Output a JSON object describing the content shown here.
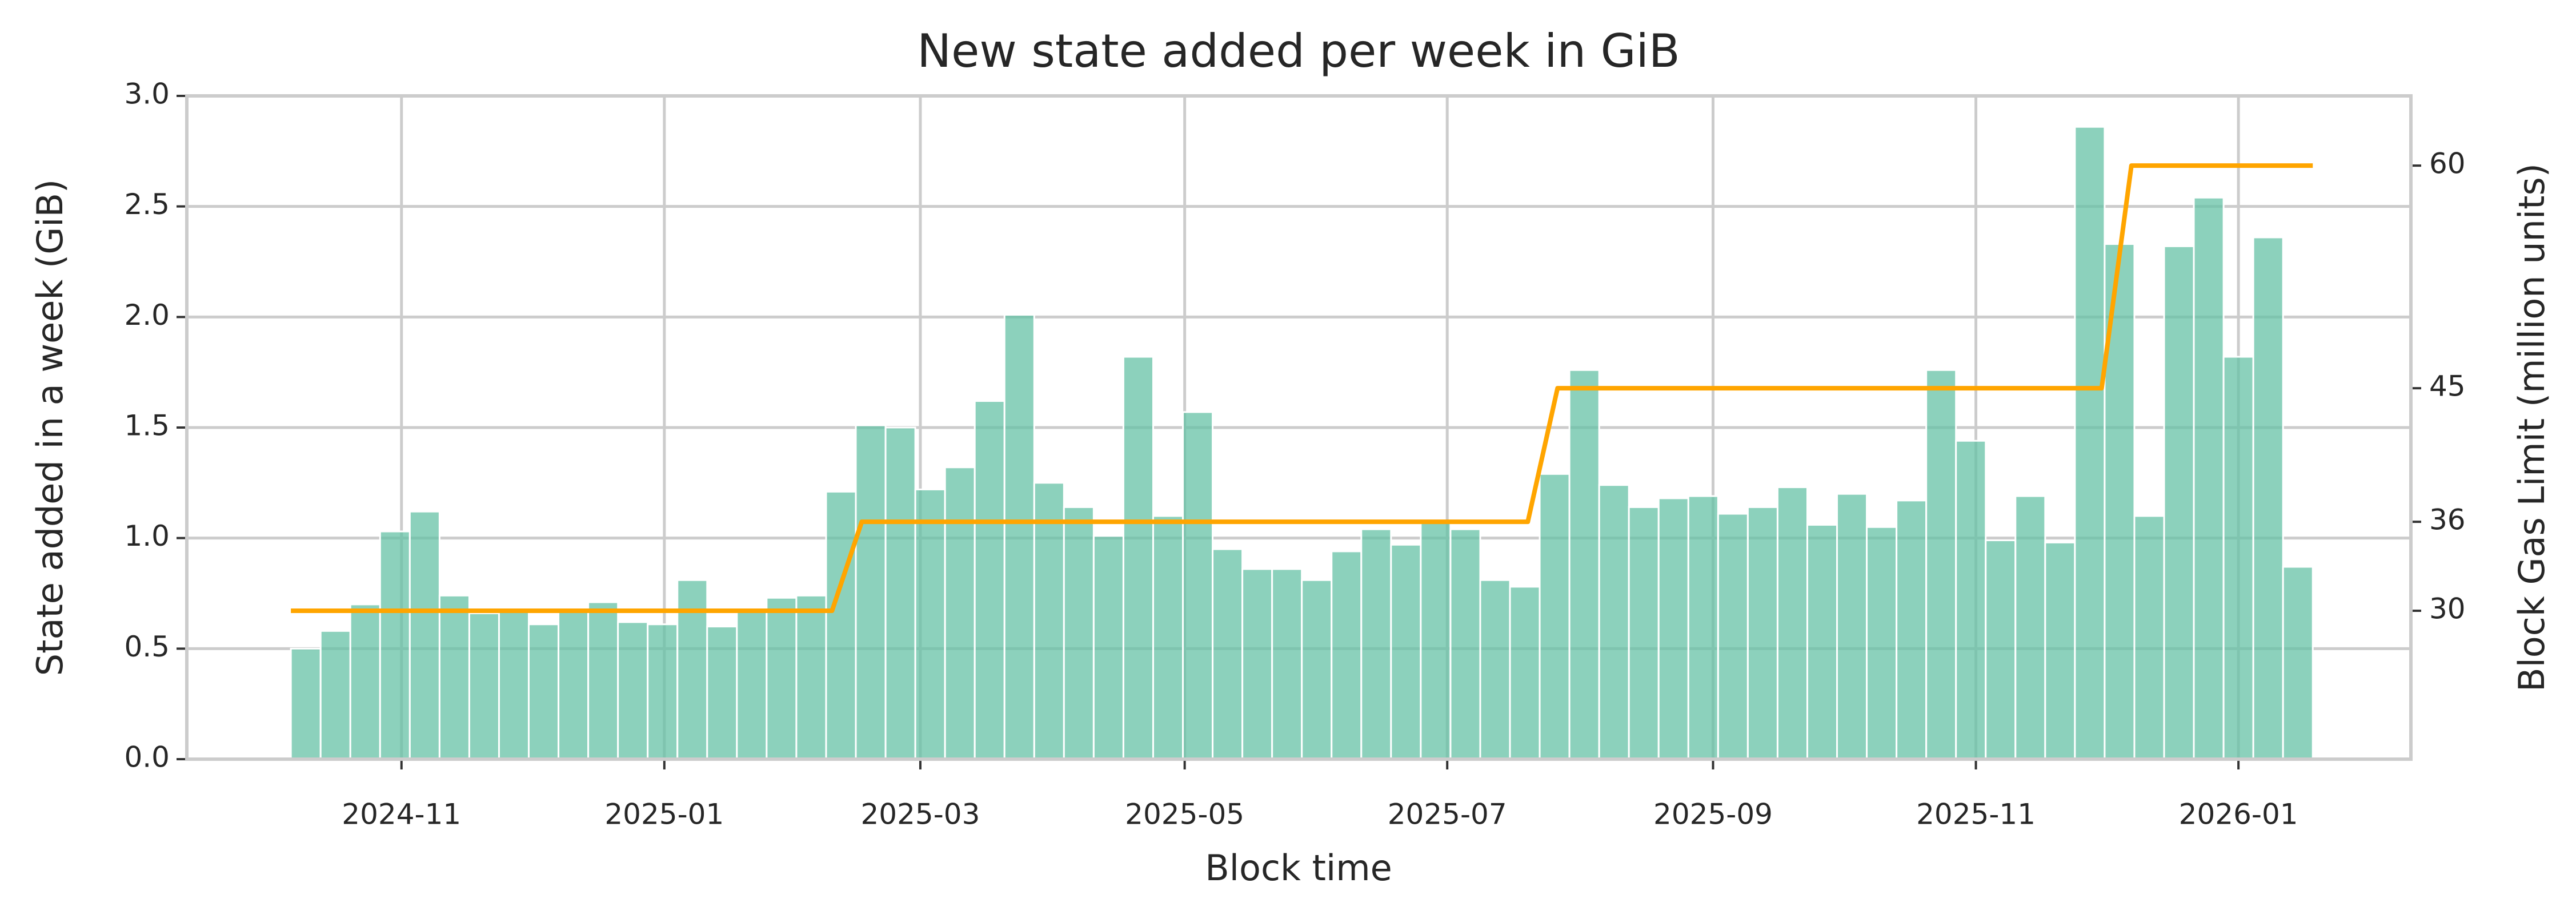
{
  "chart_data": {
    "type": "bar",
    "title": "New state added per week in GiB",
    "x_label": "Block time",
    "y_label": "State added in a week (GiB)",
    "y2_label": "Block Gas Limit (million units)",
    "categories": [
      null,
      null,
      null,
      null,
      null,
      null,
      null,
      null,
      null,
      null,
      null,
      null,
      null,
      null,
      null,
      null,
      null,
      null,
      null,
      null,
      null,
      null,
      null,
      null,
      null,
      null,
      null,
      null,
      null,
      null,
      null,
      null,
      null,
      null,
      null,
      null,
      null,
      null,
      null,
      null,
      null,
      null,
      null,
      null,
      null,
      null,
      null,
      null,
      null,
      null,
      null,
      null,
      null,
      null,
      null,
      null,
      null,
      null,
      null,
      null,
      null,
      null,
      null,
      null,
      null,
      null,
      null,
      null
    ],
    "xlim": [
      -3.5,
      71.3
    ],
    "xticks": [
      {
        "value": 3.72,
        "label": "2024-11"
      },
      {
        "value": 12.56,
        "label": "2025-01"
      },
      {
        "value": 21.17,
        "label": "2025-03"
      },
      {
        "value": 30.06,
        "label": "2025-05"
      },
      {
        "value": 38.89,
        "label": "2025-07"
      },
      {
        "value": 47.83,
        "label": "2025-09"
      },
      {
        "value": 56.67,
        "label": "2025-11"
      },
      {
        "value": 65.5,
        "label": "2026-01"
      }
    ],
    "ylim": [
      0,
      3
    ],
    "yticks": [
      {
        "value": 0,
        "label": "0.0"
      },
      0.5,
      {
        "value": 1,
        "label": "1.0"
      },
      1.5,
      {
        "value": 2,
        "label": "2.0"
      },
      2.5,
      {
        "value": 3,
        "label": "3.0"
      }
    ],
    "y2lim": [
      20,
      64.7
    ],
    "y2ticks": [
      30,
      36,
      45,
      60
    ],
    "grid": true,
    "series": [
      {
        "type": "bar",
        "color": "#66c2a5",
        "opacity": 0.75,
        "values": [
          0.5,
          0.58,
          0.7,
          1.03,
          1.12,
          0.74,
          0.66,
          0.67,
          0.61,
          0.67,
          0.71,
          0.62,
          0.61,
          0.81,
          0.6,
          0.67,
          0.73,
          0.74,
          1.21,
          1.51,
          1.5,
          1.22,
          1.32,
          1.62,
          2.01,
          1.25,
          1.14,
          1.01,
          1.82,
          1.1,
          1.57,
          0.95,
          0.86,
          0.86,
          0.81,
          0.94,
          1.04,
          0.97,
          1.07,
          1.04,
          0.81,
          0.78,
          1.29,
          1.76,
          1.24,
          1.14,
          1.18,
          1.19,
          1.11,
          1.14,
          1.23,
          1.06,
          1.2,
          1.05,
          1.17,
          1.76,
          1.44,
          0.99,
          1.19,
          0.98,
          2.86,
          2.33,
          1.1,
          2.32,
          2.54,
          1.82,
          2.36,
          0.87
        ]
      },
      {
        "type": "line",
        "axis": "y2",
        "color": "#ffa500",
        "x": [
          0,
          18.2,
          19.2,
          41.6,
          42.6,
          60.9,
          61.9,
          68
        ],
        "values": [
          30,
          30,
          36,
          36,
          45,
          45,
          60,
          60
        ]
      }
    ]
  }
}
